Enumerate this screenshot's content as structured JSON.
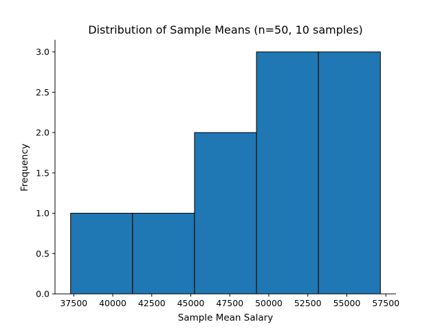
{
  "chart_data": {
    "type": "bar",
    "title": "Distribution of Sample Means (n=50, 10 samples)",
    "xlabel": "Sample Mean Salary",
    "ylabel": "Frequency",
    "bins": [
      {
        "x0": 37300,
        "x1": 41270,
        "count": 1
      },
      {
        "x0": 41270,
        "x1": 45240,
        "count": 1
      },
      {
        "x0": 45240,
        "x1": 49210,
        "count": 2
      },
      {
        "x0": 49210,
        "x1": 53180,
        "count": 3
      },
      {
        "x0": 53180,
        "x1": 57150,
        "count": 3
      }
    ],
    "xlim": [
      36300,
      58150
    ],
    "ylim": [
      0,
      3.15
    ],
    "xticks": [
      37500,
      40000,
      42500,
      45000,
      47500,
      50000,
      52500,
      55000,
      57500
    ],
    "xtick_labels": [
      "37500",
      "40000",
      "42500",
      "45000",
      "47500",
      "50000",
      "52500",
      "55000",
      "57500"
    ],
    "yticks": [
      0,
      0.5,
      1,
      1.5,
      2,
      2.5,
      3
    ],
    "ytick_labels": [
      "0.0",
      "0.5",
      "1.0",
      "1.5",
      "2.0",
      "2.5",
      "3.0"
    ],
    "grid": false,
    "colors": {
      "bar_fill": "#1f77b4",
      "bar_edge": "#000000",
      "axis": "#000000"
    }
  }
}
